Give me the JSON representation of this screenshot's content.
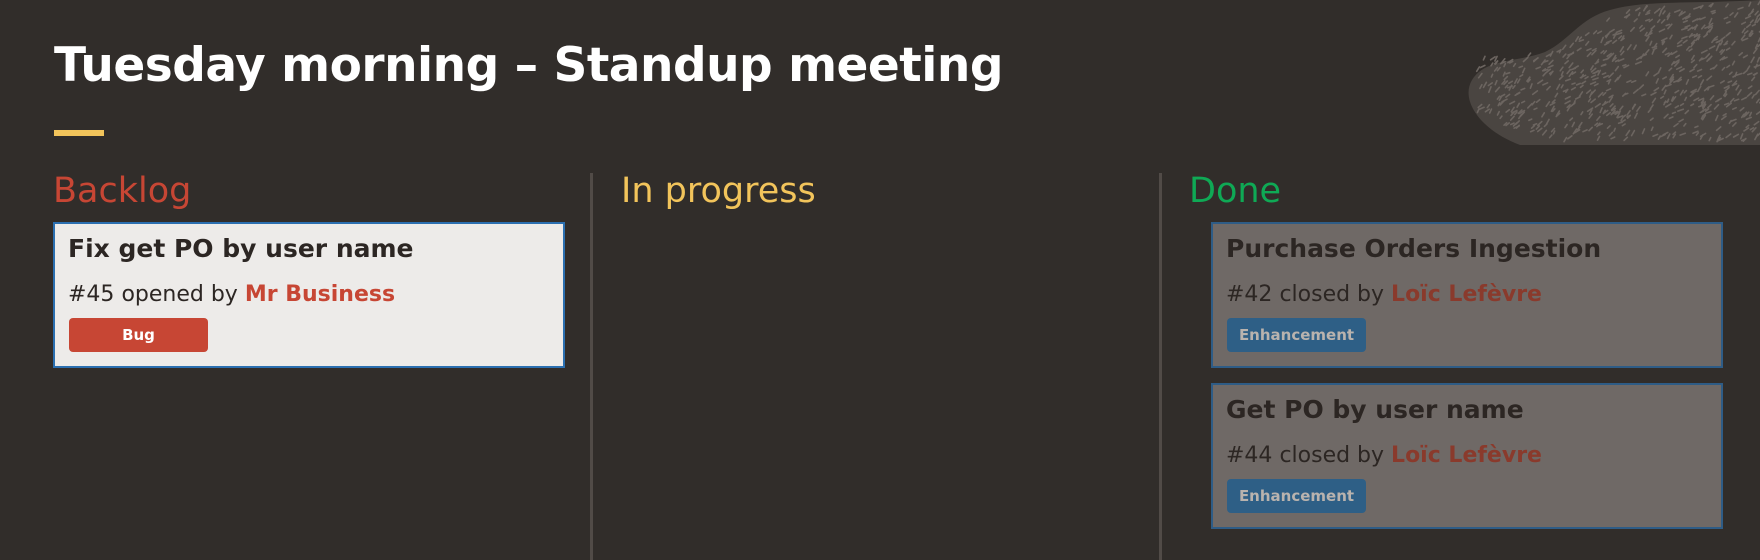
{
  "title": "Tuesday morning – Standup meeting",
  "colors": {
    "background": "#312d2a",
    "accent_rule": "#f2c45b",
    "backlog": "#c74634",
    "in_progress": "#f2c45b",
    "done": "#0fa955"
  },
  "columns": [
    {
      "title": "Backlog",
      "cards": [
        {
          "title": "Fix get PO by user name",
          "number": "#45",
          "action": "opened by",
          "author": "Mr Business",
          "label": "Bug"
        }
      ]
    },
    {
      "title": "In progress",
      "cards": []
    },
    {
      "title": "Done",
      "cards": [
        {
          "title": "Purchase Orders Ingestion",
          "number": "#42",
          "action": "closed by",
          "author": "Loïc Lefèvre",
          "label": "Enhancement"
        },
        {
          "title": "Get PO by user name",
          "number": "#44",
          "action": "closed by",
          "author": "Loïc Lefèvre",
          "label": "Enhancement"
        }
      ]
    }
  ]
}
